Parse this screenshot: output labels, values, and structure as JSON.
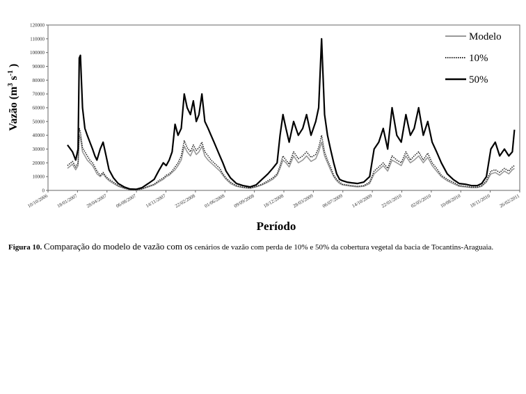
{
  "chart_data": {
    "type": "line",
    "title": "",
    "xlabel": "Período",
    "ylabel": "Vazão (m³ s⁻¹ )",
    "ylabel_parts": {
      "base": "Vazão (m",
      "sup1": "3",
      "mid": " s",
      "sup2": "-1",
      "end": " )"
    },
    "ylim": [
      0,
      120000
    ],
    "xlim": [
      "2006-10-10",
      "2011-02-26"
    ],
    "y_ticks": [
      0,
      10000,
      20000,
      30000,
      40000,
      50000,
      60000,
      70000,
      80000,
      90000,
      100000,
      110000,
      120000
    ],
    "x_tick_labels": [
      "10/10/2006",
      "18/01/2007",
      "28/04/2007",
      "06/08/2007",
      "14/11/2007",
      "22/02/2008",
      "01/06/2008",
      "09/09/2008",
      "18/12/2008",
      "28/03/2009",
      "06/07/2009",
      "14/10/2009",
      "22/01/2010",
      "02/05/2010",
      "10/08/2010",
      "18/11/2010",
      "26/02/2011"
    ],
    "grid": false,
    "legend_position": "top-right",
    "series": [
      {
        "name": "Modelo",
        "color": "#999999",
        "style": "solid",
        "x": [
          "2006-12-15",
          "2007-01-01",
          "2007-01-12",
          "2007-01-20",
          "2007-01-24",
          "2007-01-28",
          "2007-02-04",
          "2007-02-12",
          "2007-02-20",
          "2007-03-01",
          "2007-03-10",
          "2007-03-18",
          "2007-03-25",
          "2007-04-05",
          "2007-04-15",
          "2007-04-25",
          "2007-05-05",
          "2007-05-20",
          "2007-06-05",
          "2007-06-25",
          "2007-07-15",
          "2007-08-05",
          "2007-08-25",
          "2007-09-15",
          "2007-10-05",
          "2007-10-20",
          "2007-11-05",
          "2007-11-15",
          "2007-11-25",
          "2007-12-05",
          "2007-12-15",
          "2007-12-25",
          "2008-01-05",
          "2008-01-15",
          "2008-01-25",
          "2008-02-05",
          "2008-02-15",
          "2008-02-25",
          "2008-03-05",
          "2008-03-15",
          "2008-03-25",
          "2008-04-05",
          "2008-04-15",
          "2008-04-25",
          "2008-05-05",
          "2008-05-15",
          "2008-05-25",
          "2008-06-05",
          "2008-06-20",
          "2008-07-10",
          "2008-08-01",
          "2008-08-25",
          "2008-09-15",
          "2008-10-05",
          "2008-10-25",
          "2008-11-10",
          "2008-11-25",
          "2008-12-05",
          "2008-12-15",
          "2008-12-25",
          "2009-01-05",
          "2009-01-20",
          "2009-02-05",
          "2009-02-20",
          "2009-03-05",
          "2009-03-20",
          "2009-04-05",
          "2009-04-15",
          "2009-04-25",
          "2009-05-05",
          "2009-05-15",
          "2009-05-25",
          "2009-06-05",
          "2009-06-15",
          "2009-06-25",
          "2009-07-05",
          "2009-07-20",
          "2009-08-05",
          "2009-08-25",
          "2009-09-15",
          "2009-10-05",
          "2009-10-20",
          "2009-11-05",
          "2009-11-20",
          "2009-12-05",
          "2009-12-20",
          "2010-01-05",
          "2010-01-20",
          "2010-02-05",
          "2010-02-20",
          "2010-03-05",
          "2010-03-20",
          "2010-04-05",
          "2010-04-20",
          "2010-05-05",
          "2010-05-20",
          "2010-06-05",
          "2010-06-25",
          "2010-07-15",
          "2010-08-05",
          "2010-08-25",
          "2010-09-15",
          "2010-10-05",
          "2010-10-20",
          "2010-11-05",
          "2010-11-20",
          "2010-12-05",
          "2010-12-20",
          "2011-01-05",
          "2011-01-20",
          "2011-02-01",
          "2011-02-08"
        ],
        "y": [
          16000,
          19000,
          15000,
          18000,
          40000,
          38000,
          28000,
          25000,
          22000,
          20000,
          18000,
          15000,
          12000,
          10000,
          12000,
          9000,
          7000,
          5000,
          3000,
          1500,
          500,
          300,
          1000,
          2500,
          4000,
          6000,
          8000,
          10000,
          11000,
          13000,
          15000,
          18000,
          22000,
          32000,
          28000,
          25000,
          30000,
          26000,
          28000,
          32000,
          25000,
          22000,
          20000,
          18000,
          16000,
          14000,
          11000,
          8000,
          5000,
          3000,
          2000,
          1500,
          2500,
          4000,
          6000,
          8000,
          11000,
          16000,
          22000,
          20000,
          17000,
          25000,
          20000,
          22000,
          25000,
          21000,
          23000,
          28000,
          35000,
          25000,
          20000,
          15000,
          10000,
          7000,
          5000,
          4000,
          3500,
          3000,
          2500,
          3000,
          5000,
          12000,
          15000,
          18000,
          14000,
          22000,
          20000,
          18000,
          25000,
          20000,
          22000,
          25000,
          20000,
          24000,
          18000,
          14000,
          10000,
          7000,
          5000,
          3000,
          2500,
          2000,
          2000,
          3000,
          6000,
          12000,
          13000,
          11000,
          14000,
          12000,
          15000,
          16000
        ]
      },
      {
        "name": "10%",
        "color": "#222222",
        "style": "dotted",
        "x": [
          "2006-12-15",
          "2007-01-01",
          "2007-01-12",
          "2007-01-20",
          "2007-01-24",
          "2007-01-28",
          "2007-02-04",
          "2007-02-12",
          "2007-02-20",
          "2007-03-01",
          "2007-03-10",
          "2007-03-18",
          "2007-03-25",
          "2007-04-05",
          "2007-04-15",
          "2007-04-25",
          "2007-05-05",
          "2007-05-20",
          "2007-06-05",
          "2007-06-25",
          "2007-07-15",
          "2007-08-05",
          "2007-08-25",
          "2007-09-15",
          "2007-10-05",
          "2007-10-20",
          "2007-11-05",
          "2007-11-15",
          "2007-11-25",
          "2007-12-05",
          "2007-12-15",
          "2007-12-25",
          "2008-01-05",
          "2008-01-15",
          "2008-01-25",
          "2008-02-05",
          "2008-02-15",
          "2008-02-25",
          "2008-03-05",
          "2008-03-15",
          "2008-03-25",
          "2008-04-05",
          "2008-04-15",
          "2008-04-25",
          "2008-05-05",
          "2008-05-15",
          "2008-05-25",
          "2008-06-05",
          "2008-06-20",
          "2008-07-10",
          "2008-08-01",
          "2008-08-25",
          "2008-09-15",
          "2008-10-05",
          "2008-10-25",
          "2008-11-10",
          "2008-11-25",
          "2008-12-05",
          "2008-12-15",
          "2008-12-25",
          "2009-01-05",
          "2009-01-20",
          "2009-02-05",
          "2009-02-20",
          "2009-03-05",
          "2009-03-20",
          "2009-04-05",
          "2009-04-15",
          "2009-04-25",
          "2009-05-05",
          "2009-05-15",
          "2009-05-25",
          "2009-06-05",
          "2009-06-15",
          "2009-06-25",
          "2009-07-05",
          "2009-07-20",
          "2009-08-05",
          "2009-08-25",
          "2009-09-15",
          "2009-10-05",
          "2009-10-20",
          "2009-11-05",
          "2009-11-20",
          "2009-12-05",
          "2009-12-20",
          "2010-01-05",
          "2010-01-20",
          "2010-02-05",
          "2010-02-20",
          "2010-03-05",
          "2010-03-20",
          "2010-04-05",
          "2010-04-20",
          "2010-05-05",
          "2010-05-20",
          "2010-06-05",
          "2010-06-25",
          "2010-07-15",
          "2010-08-05",
          "2010-08-25",
          "2010-09-15",
          "2010-10-05",
          "2010-10-20",
          "2010-11-05",
          "2010-11-20",
          "2010-12-05",
          "2010-12-20",
          "2011-01-05",
          "2011-01-20",
          "2011-02-01",
          "2011-02-08"
        ],
        "y": [
          18000,
          21000,
          17000,
          20000,
          45000,
          42000,
          31000,
          28000,
          25000,
          22000,
          20000,
          17000,
          14000,
          11000,
          13000,
          10000,
          8000,
          6000,
          3500,
          1800,
          600,
          400,
          1200,
          3000,
          4500,
          7000,
          9000,
          11000,
          12000,
          14000,
          17000,
          20000,
          25000,
          36000,
          31000,
          28000,
          33000,
          29000,
          31000,
          35000,
          28000,
          25000,
          22000,
          20000,
          18000,
          16000,
          12000,
          9000,
          6000,
          3500,
          2300,
          1700,
          2800,
          4500,
          7000,
          9000,
          12000,
          18000,
          25000,
          22000,
          19000,
          28000,
          23000,
          25000,
          28000,
          24000,
          26000,
          31000,
          40000,
          28000,
          22000,
          17000,
          11000,
          8000,
          6000,
          4500,
          4000,
          3500,
          3000,
          3500,
          6000,
          14000,
          17000,
          20000,
          16000,
          25000,
          22000,
          20000,
          28000,
          22000,
          25000,
          28000,
          22000,
          27000,
          20000,
          16000,
          11000,
          8000,
          6000,
          3500,
          3000,
          2300,
          2300,
          3500,
          7000,
          14000,
          15000,
          13000,
          16000,
          14000,
          17000,
          18000
        ]
      },
      {
        "name": "50%",
        "color": "#000000",
        "style": "solid",
        "x": [
          "2006-12-15",
          "2007-01-01",
          "2007-01-12",
          "2007-01-20",
          "2007-01-24",
          "2007-01-28",
          "2007-02-04",
          "2007-02-12",
          "2007-02-20",
          "2007-03-01",
          "2007-03-10",
          "2007-03-18",
          "2007-03-25",
          "2007-04-05",
          "2007-04-15",
          "2007-04-25",
          "2007-05-05",
          "2007-05-20",
          "2007-06-05",
          "2007-06-25",
          "2007-07-15",
          "2007-08-05",
          "2007-08-25",
          "2007-09-15",
          "2007-10-05",
          "2007-10-20",
          "2007-11-05",
          "2007-11-15",
          "2007-11-25",
          "2007-12-05",
          "2007-12-15",
          "2007-12-25",
          "2008-01-05",
          "2008-01-15",
          "2008-01-25",
          "2008-02-05",
          "2008-02-15",
          "2008-02-25",
          "2008-03-05",
          "2008-03-15",
          "2008-03-25",
          "2008-04-05",
          "2008-04-15",
          "2008-04-25",
          "2008-05-05",
          "2008-05-15",
          "2008-05-25",
          "2008-06-05",
          "2008-06-20",
          "2008-07-10",
          "2008-08-01",
          "2008-08-25",
          "2008-09-15",
          "2008-10-05",
          "2008-10-25",
          "2008-11-10",
          "2008-11-25",
          "2008-12-05",
          "2008-12-15",
          "2008-12-25",
          "2009-01-05",
          "2009-01-20",
          "2009-02-05",
          "2009-02-20",
          "2009-03-05",
          "2009-03-20",
          "2009-04-05",
          "2009-04-15",
          "2009-04-25",
          "2009-05-05",
          "2009-05-15",
          "2009-05-25",
          "2009-06-05",
          "2009-06-15",
          "2009-06-25",
          "2009-07-05",
          "2009-07-20",
          "2009-08-05",
          "2009-08-25",
          "2009-09-15",
          "2009-10-05",
          "2009-10-20",
          "2009-11-05",
          "2009-11-20",
          "2009-12-05",
          "2009-12-20",
          "2010-01-05",
          "2010-01-20",
          "2010-02-05",
          "2010-02-20",
          "2010-03-05",
          "2010-03-20",
          "2010-04-05",
          "2010-04-20",
          "2010-05-05",
          "2010-05-20",
          "2010-06-05",
          "2010-06-25",
          "2010-07-15",
          "2010-08-05",
          "2010-08-25",
          "2010-09-15",
          "2010-10-05",
          "2010-10-20",
          "2010-11-05",
          "2010-11-20",
          "2010-12-05",
          "2010-12-20",
          "2011-01-05",
          "2011-01-20",
          "2011-02-01",
          "2011-02-08"
        ],
        "y": [
          33000,
          28000,
          22000,
          30000,
          96000,
          98000,
          60000,
          45000,
          40000,
          35000,
          30000,
          25000,
          22000,
          30000,
          35000,
          25000,
          15000,
          9000,
          5000,
          2500,
          1000,
          800,
          2000,
          5000,
          8000,
          14000,
          20000,
          18000,
          22000,
          28000,
          48000,
          40000,
          45000,
          70000,
          60000,
          55000,
          65000,
          50000,
          55000,
          70000,
          50000,
          45000,
          40000,
          35000,
          30000,
          25000,
          20000,
          14000,
          9000,
          5000,
          3500,
          2500,
          4000,
          8000,
          12000,
          16000,
          20000,
          40000,
          55000,
          45000,
          35000,
          50000,
          40000,
          45000,
          55000,
          40000,
          50000,
          60000,
          110000,
          55000,
          40000,
          30000,
          20000,
          12000,
          8000,
          7000,
          6000,
          5500,
          5000,
          6000,
          10000,
          30000,
          35000,
          45000,
          30000,
          60000,
          40000,
          35000,
          55000,
          40000,
          45000,
          60000,
          40000,
          50000,
          35000,
          28000,
          20000,
          12000,
          8000,
          5000,
          4500,
          3500,
          3500,
          5000,
          10000,
          30000,
          35000,
          25000,
          30000,
          25000,
          28000,
          44000
        ]
      }
    ]
  },
  "caption": {
    "label": "Figura 10.",
    "lead": "Comparação do modelo de vazão com os",
    "rest": "cenários de vazão com perda de 10% e 50% da cobertura vegetal da bacia de Tocantins-Araguaia."
  }
}
